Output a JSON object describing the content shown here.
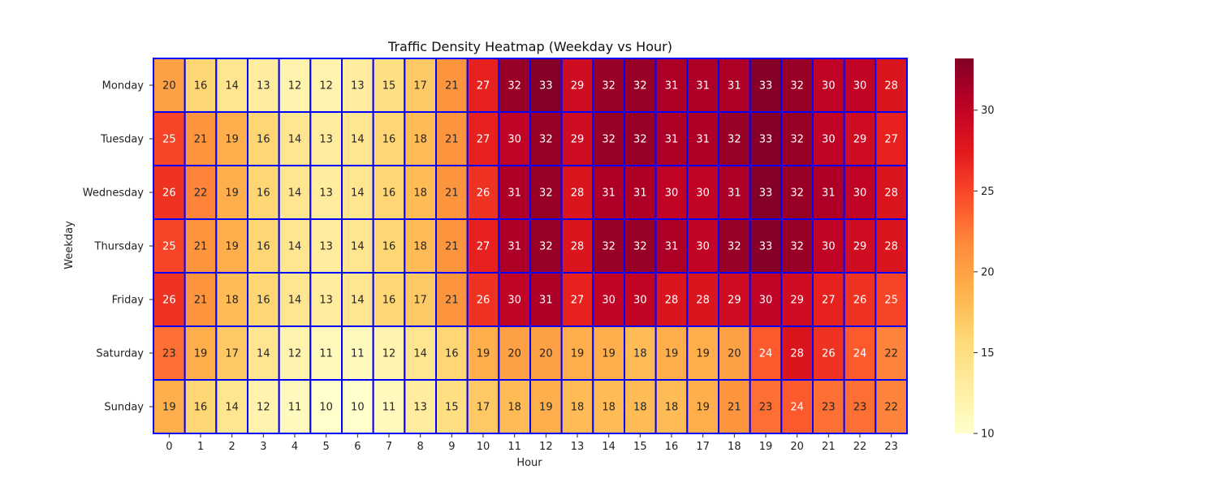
{
  "chart_data": {
    "type": "heatmap",
    "title": "Traffic Density Heatmap (Weekday vs Hour)",
    "xlabel": "Hour",
    "ylabel": "Weekday",
    "x": [
      "0",
      "1",
      "2",
      "3",
      "4",
      "5",
      "6",
      "7",
      "8",
      "9",
      "10",
      "11",
      "12",
      "13",
      "14",
      "15",
      "16",
      "17",
      "18",
      "19",
      "20",
      "21",
      "22",
      "23"
    ],
    "y": [
      "Monday",
      "Tuesday",
      "Wednesday",
      "Thursday",
      "Friday",
      "Saturday",
      "Sunday"
    ],
    "values": [
      [
        20,
        16,
        14,
        13,
        12,
        12,
        13,
        15,
        17,
        21,
        27,
        32,
        33,
        29,
        32,
        32,
        31,
        31,
        31,
        33,
        32,
        30,
        30,
        28
      ],
      [
        25,
        21,
        19,
        16,
        14,
        13,
        14,
        16,
        18,
        21,
        27,
        30,
        32,
        29,
        32,
        32,
        31,
        31,
        32,
        33,
        32,
        30,
        29,
        27
      ],
      [
        26,
        22,
        19,
        16,
        14,
        13,
        14,
        16,
        18,
        21,
        26,
        31,
        32,
        28,
        31,
        31,
        30,
        30,
        31,
        33,
        32,
        31,
        30,
        28
      ],
      [
        25,
        21,
        19,
        16,
        14,
        13,
        14,
        16,
        18,
        21,
        27,
        31,
        32,
        28,
        32,
        32,
        31,
        30,
        32,
        33,
        32,
        30,
        29,
        28
      ],
      [
        26,
        21,
        18,
        16,
        14,
        13,
        14,
        16,
        17,
        21,
        26,
        30,
        31,
        27,
        30,
        30,
        28,
        28,
        29,
        30,
        29,
        27,
        26,
        25
      ],
      [
        23,
        19,
        17,
        14,
        12,
        11,
        11,
        12,
        14,
        16,
        19,
        20,
        20,
        19,
        19,
        18,
        19,
        19,
        20,
        24,
        28,
        26,
        24,
        22
      ],
      [
        19,
        16,
        14,
        12,
        11,
        10,
        10,
        11,
        13,
        15,
        17,
        18,
        19,
        18,
        18,
        18,
        18,
        19,
        21,
        23,
        24,
        23,
        23,
        22
      ]
    ],
    "value_range": [
      10,
      33.2
    ],
    "colormap": "YlOrRd",
    "cell_border_color": "#0000ff",
    "colorbar": {
      "ticks": [
        "10",
        "15",
        "20",
        "25",
        "30"
      ],
      "tick_values": [
        10,
        15,
        20,
        25,
        30
      ]
    }
  }
}
